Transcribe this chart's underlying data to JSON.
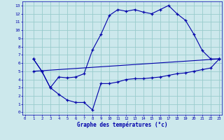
{
  "xlabel": "Graphe des températures (°c)",
  "bg_color": "#cce8ec",
  "grid_color": "#99cccc",
  "line_color": "#0000aa",
  "x_ticks": [
    0,
    1,
    2,
    3,
    4,
    5,
    6,
    7,
    8,
    9,
    10,
    11,
    12,
    13,
    14,
    15,
    16,
    17,
    18,
    19,
    20,
    21,
    22,
    23
  ],
  "y_ticks": [
    0,
    1,
    2,
    3,
    4,
    5,
    6,
    7,
    8,
    9,
    10,
    11,
    12,
    13
  ],
  "xlim": [
    -0.3,
    23.3
  ],
  "ylim": [
    -0.3,
    13.5
  ],
  "line1_x": [
    1,
    2,
    3,
    4,
    5,
    6,
    7,
    8,
    9,
    10,
    11,
    12,
    13,
    14,
    15,
    16,
    17,
    18,
    19,
    20,
    21,
    22,
    23
  ],
  "line1_y": [
    6.5,
    5.0,
    3.0,
    4.3,
    4.2,
    4.3,
    4.7,
    7.6,
    9.5,
    11.8,
    12.5,
    12.3,
    12.5,
    12.2,
    12.0,
    12.5,
    13.0,
    12.0,
    11.2,
    9.5,
    7.5,
    6.5,
    6.5
  ],
  "line2_x": [
    1,
    23
  ],
  "line2_y": [
    5.0,
    6.5
  ],
  "line3_x": [
    1,
    2,
    3,
    4,
    5,
    6,
    7,
    8,
    9,
    10,
    11,
    12,
    13,
    14,
    15,
    16,
    17,
    18,
    19,
    20,
    21,
    22,
    23
  ],
  "line3_y": [
    6.5,
    5.0,
    3.0,
    2.2,
    1.5,
    1.2,
    1.2,
    0.3,
    3.5,
    3.5,
    3.7,
    4.0,
    4.1,
    4.1,
    4.2,
    4.3,
    4.5,
    4.7,
    4.8,
    5.0,
    5.2,
    5.4,
    6.5
  ]
}
